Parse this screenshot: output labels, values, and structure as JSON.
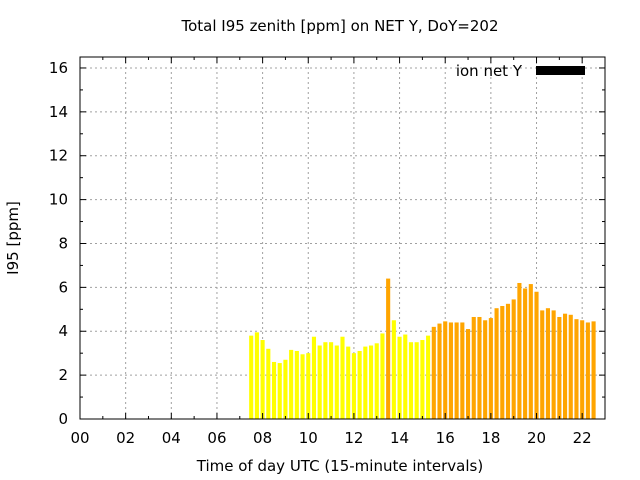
{
  "chart_data": {
    "type": "bar",
    "title": "Total I95 zenith [ppm] on NET Y, DoY=202",
    "xlabel": "Time of day UTC (15-minute intervals)",
    "ylabel": "I95 [ppm]",
    "xlim": [
      0,
      23
    ],
    "ylim": [
      0,
      16.5
    ],
    "x_ticks": [
      "00",
      "02",
      "04",
      "06",
      "08",
      "10",
      "12",
      "14",
      "16",
      "18",
      "20",
      "22"
    ],
    "y_ticks": [
      "0",
      "2",
      "4",
      "6",
      "8",
      "10",
      "12",
      "14",
      "16"
    ],
    "grid": true,
    "legend": {
      "position": "top-right",
      "entries": [
        {
          "label": "ion net Y",
          "color": "#000000"
        }
      ]
    },
    "bar_width_hours": 0.18,
    "bars": [
      {
        "x": 7.5,
        "y": 3.8,
        "color": "#ffff00"
      },
      {
        "x": 7.75,
        "y": 3.95,
        "color": "#ffff00"
      },
      {
        "x": 8.0,
        "y": 3.6,
        "color": "#ffff00"
      },
      {
        "x": 8.25,
        "y": 3.2,
        "color": "#ffff00"
      },
      {
        "x": 8.5,
        "y": 2.6,
        "color": "#ffff00"
      },
      {
        "x": 8.75,
        "y": 2.55,
        "color": "#ffff00"
      },
      {
        "x": 9.0,
        "y": 2.7,
        "color": "#ffff00"
      },
      {
        "x": 9.25,
        "y": 3.15,
        "color": "#ffff00"
      },
      {
        "x": 9.5,
        "y": 3.1,
        "color": "#ffff00"
      },
      {
        "x": 9.75,
        "y": 2.95,
        "color": "#ffff00"
      },
      {
        "x": 10.0,
        "y": 3.0,
        "color": "#ffff00"
      },
      {
        "x": 10.25,
        "y": 3.75,
        "color": "#ffff00"
      },
      {
        "x": 10.5,
        "y": 3.35,
        "color": "#ffff00"
      },
      {
        "x": 10.75,
        "y": 3.5,
        "color": "#ffff00"
      },
      {
        "x": 11.0,
        "y": 3.5,
        "color": "#ffff00"
      },
      {
        "x": 11.25,
        "y": 3.35,
        "color": "#ffff00"
      },
      {
        "x": 11.5,
        "y": 3.75,
        "color": "#ffff00"
      },
      {
        "x": 11.75,
        "y": 3.3,
        "color": "#ffff00"
      },
      {
        "x": 12.0,
        "y": 3.0,
        "color": "#ffff00"
      },
      {
        "x": 12.25,
        "y": 3.1,
        "color": "#ffff00"
      },
      {
        "x": 12.5,
        "y": 3.3,
        "color": "#ffff00"
      },
      {
        "x": 12.75,
        "y": 3.35,
        "color": "#ffff00"
      },
      {
        "x": 13.0,
        "y": 3.45,
        "color": "#ffff00"
      },
      {
        "x": 13.25,
        "y": 3.9,
        "color": "#ffff00"
      },
      {
        "x": 13.5,
        "y": 6.4,
        "color": "#ffa500"
      },
      {
        "x": 13.75,
        "y": 4.5,
        "color": "#ffff00"
      },
      {
        "x": 14.0,
        "y": 3.75,
        "color": "#ffff00"
      },
      {
        "x": 14.25,
        "y": 3.85,
        "color": "#ffff00"
      },
      {
        "x": 14.5,
        "y": 3.5,
        "color": "#ffff00"
      },
      {
        "x": 14.75,
        "y": 3.5,
        "color": "#ffff00"
      },
      {
        "x": 15.0,
        "y": 3.6,
        "color": "#ffff00"
      },
      {
        "x": 15.25,
        "y": 3.8,
        "color": "#ffff00"
      },
      {
        "x": 15.5,
        "y": 4.2,
        "color": "#ffa500"
      },
      {
        "x": 15.75,
        "y": 4.35,
        "color": "#ffa500"
      },
      {
        "x": 16.0,
        "y": 4.45,
        "color": "#ffa500"
      },
      {
        "x": 16.25,
        "y": 4.4,
        "color": "#ffa500"
      },
      {
        "x": 16.5,
        "y": 4.4,
        "color": "#ffa500"
      },
      {
        "x": 16.75,
        "y": 4.4,
        "color": "#ffa500"
      },
      {
        "x": 17.0,
        "y": 4.1,
        "color": "#ffa500"
      },
      {
        "x": 17.25,
        "y": 4.65,
        "color": "#ffa500"
      },
      {
        "x": 17.5,
        "y": 4.65,
        "color": "#ffa500"
      },
      {
        "x": 17.75,
        "y": 4.5,
        "color": "#ffa500"
      },
      {
        "x": 18.0,
        "y": 4.6,
        "color": "#ffa500"
      },
      {
        "x": 18.25,
        "y": 5.05,
        "color": "#ffa500"
      },
      {
        "x": 18.5,
        "y": 5.15,
        "color": "#ffa500"
      },
      {
        "x": 18.75,
        "y": 5.25,
        "color": "#ffa500"
      },
      {
        "x": 19.0,
        "y": 5.45,
        "color": "#ffa500"
      },
      {
        "x": 19.25,
        "y": 6.2,
        "color": "#ffa500"
      },
      {
        "x": 19.5,
        "y": 5.95,
        "color": "#ffa500"
      },
      {
        "x": 19.75,
        "y": 6.15,
        "color": "#ffa500"
      },
      {
        "x": 20.0,
        "y": 5.8,
        "color": "#ffa500"
      },
      {
        "x": 20.25,
        "y": 4.95,
        "color": "#ffa500"
      },
      {
        "x": 20.5,
        "y": 5.05,
        "color": "#ffa500"
      },
      {
        "x": 20.75,
        "y": 4.95,
        "color": "#ffa500"
      },
      {
        "x": 21.0,
        "y": 4.65,
        "color": "#ffa500"
      },
      {
        "x": 21.25,
        "y": 4.8,
        "color": "#ffa500"
      },
      {
        "x": 21.5,
        "y": 4.75,
        "color": "#ffa500"
      },
      {
        "x": 21.75,
        "y": 4.55,
        "color": "#ffa500"
      },
      {
        "x": 22.0,
        "y": 4.5,
        "color": "#ffa500"
      },
      {
        "x": 22.25,
        "y": 4.4,
        "color": "#ffa500"
      },
      {
        "x": 22.5,
        "y": 4.45,
        "color": "#ffa500"
      }
    ]
  }
}
